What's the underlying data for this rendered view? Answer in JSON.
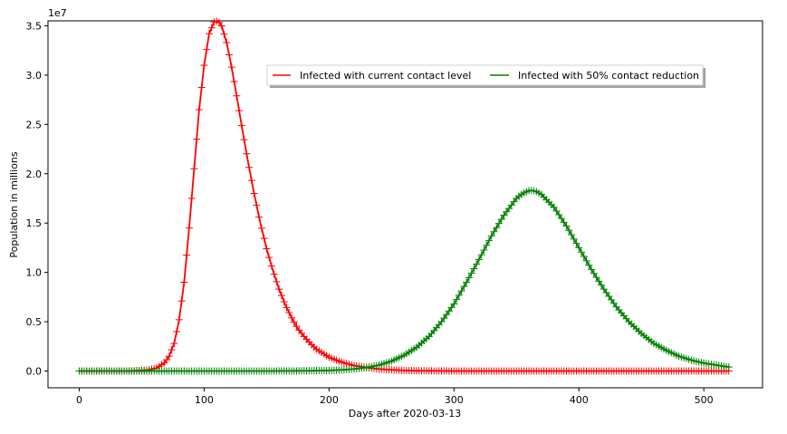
{
  "chart_data": {
    "type": "line",
    "xlabel": "Days after 2020-03-13",
    "ylabel": "Population in millions",
    "y_multiplier": "1e7",
    "xlim": [
      -25,
      547
    ],
    "ylim": [
      -0.17,
      3.55
    ],
    "x_ticks": [
      0,
      100,
      200,
      300,
      400,
      500
    ],
    "y_ticks": [
      0.0,
      0.5,
      1.0,
      1.5,
      2.0,
      2.5,
      3.0,
      3.5
    ],
    "x_tick_labels": [
      "0",
      "100",
      "200",
      "300",
      "400",
      "500"
    ],
    "y_tick_labels": [
      "0.0",
      "0.5",
      "1.0",
      "1.5",
      "2.0",
      "2.5",
      "3.0",
      "3.5"
    ],
    "grid": false,
    "legend_position": "upper-center",
    "series": [
      {
        "name": "Infected with current contact level",
        "color": "#ff0000",
        "marker": "+",
        "x": [
          0,
          40,
          55,
          62,
          68,
          72,
          76,
          80,
          84,
          88,
          92,
          96,
          100,
          104,
          108,
          111,
          114,
          118,
          122,
          126,
          130,
          135,
          140,
          145,
          150,
          155,
          160,
          165,
          170,
          175,
          180,
          185,
          190,
          200,
          210,
          220,
          230,
          240,
          250,
          260,
          270,
          300,
          350,
          400,
          450,
          500,
          520
        ],
        "y": [
          0.0,
          0.0,
          0.01,
          0.03,
          0.08,
          0.15,
          0.28,
          0.52,
          0.9,
          1.45,
          2.05,
          2.65,
          3.1,
          3.42,
          3.54,
          3.55,
          3.5,
          3.33,
          3.08,
          2.79,
          2.49,
          2.13,
          1.8,
          1.5,
          1.24,
          1.02,
          0.83,
          0.67,
          0.54,
          0.43,
          0.35,
          0.28,
          0.22,
          0.14,
          0.09,
          0.055,
          0.035,
          0.02,
          0.012,
          0.006,
          0.003,
          0.0,
          0.0,
          0.0,
          0.0,
          0.0,
          0.0
        ]
      },
      {
        "name": "Infected with 50% contact reduction",
        "color": "#008000",
        "marker": "+",
        "x": [
          0,
          100,
          150,
          180,
          200,
          210,
          220,
          230,
          240,
          250,
          260,
          270,
          280,
          290,
          300,
          310,
          320,
          330,
          340,
          350,
          355,
          360,
          363,
          366,
          370,
          380,
          390,
          400,
          410,
          420,
          430,
          440,
          450,
          460,
          470,
          480,
          490,
          500,
          510,
          520
        ],
        "y": [
          0.0,
          0.0,
          0.0,
          0.002,
          0.006,
          0.011,
          0.02,
          0.035,
          0.06,
          0.1,
          0.16,
          0.24,
          0.35,
          0.5,
          0.68,
          0.9,
          1.13,
          1.37,
          1.58,
          1.75,
          1.8,
          1.83,
          1.83,
          1.82,
          1.79,
          1.66,
          1.47,
          1.25,
          1.03,
          0.83,
          0.65,
          0.5,
          0.38,
          0.28,
          0.21,
          0.15,
          0.11,
          0.08,
          0.06,
          0.04
        ]
      }
    ]
  }
}
